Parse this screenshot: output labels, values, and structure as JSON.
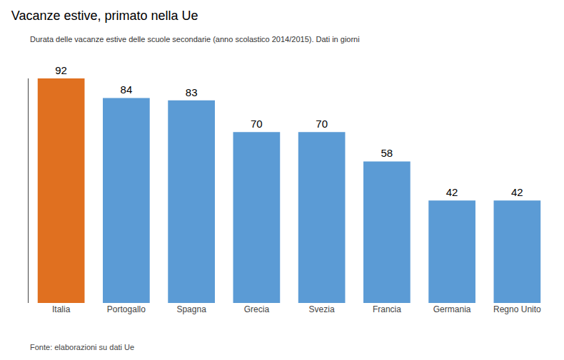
{
  "chart_data": {
    "type": "bar",
    "title": "Vacanze estive, primato nella Ue",
    "subtitle": "Durata delle vacanze estive delle scuole secondarie (anno scolastico 2014/2015). Dati in giorni",
    "categories": [
      "Italia",
      "Portogallo",
      "Spagna",
      "Grecia",
      "Svezia",
      "Francia",
      "Germania",
      "Regno Unito"
    ],
    "values": [
      92,
      84,
      83,
      70,
      70,
      58,
      42,
      42
    ],
    "colors": [
      "#E07020",
      "#5B9BD5",
      "#5B9BD5",
      "#5B9BD5",
      "#5B9BD5",
      "#5B9BD5",
      "#5B9BD5",
      "#5B9BD5"
    ],
    "ylim": [
      0,
      92
    ],
    "grid": false,
    "data_labels": true,
    "tick_labels": "x",
    "annotations": [
      "Fonte: elaborazioni su dati Ue"
    ]
  }
}
